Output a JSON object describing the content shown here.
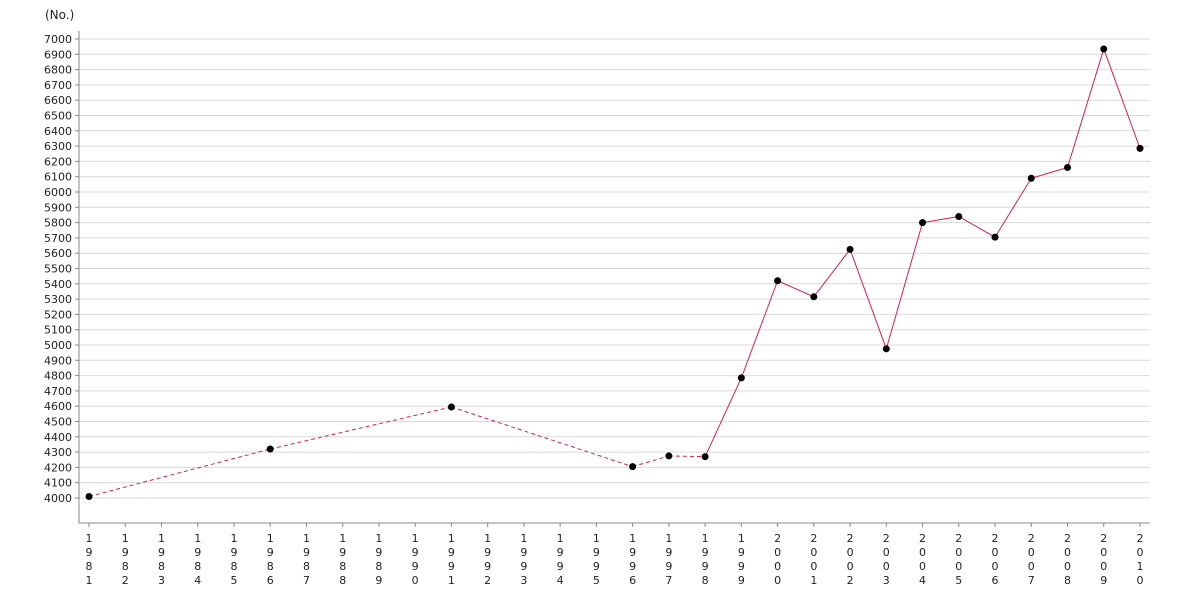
{
  "chart_data": {
    "type": "line",
    "y_unit_label": "(No.)",
    "x": [
      1981,
      1986,
      1991,
      1996,
      1997,
      1998,
      1999,
      2000,
      2001,
      2002,
      2003,
      2004,
      2005,
      2006,
      2007,
      2008,
      2009,
      2010
    ],
    "values": [
      4010,
      4320,
      4595,
      4205,
      4275,
      4270,
      4785,
      5420,
      5315,
      5625,
      4975,
      5800,
      5840,
      5705,
      6090,
      6160,
      6935,
      6285
    ],
    "dashed_until_index": 5,
    "x_tick_labels": [
      1981,
      1982,
      1983,
      1984,
      1985,
      1986,
      1987,
      1988,
      1989,
      1990,
      1991,
      1992,
      1993,
      1994,
      1995,
      1996,
      1997,
      1998,
      1999,
      2000,
      2001,
      2002,
      2003,
      2004,
      2005,
      2006,
      2007,
      2008,
      2009,
      2010
    ],
    "y_ticks": [
      4000,
      4100,
      4200,
      4300,
      4400,
      4500,
      4600,
      4700,
      4800,
      4900,
      5000,
      5100,
      5200,
      5300,
      5400,
      5500,
      5600,
      5700,
      5800,
      5900,
      6000,
      6100,
      6200,
      6300,
      6400,
      6500,
      6600,
      6700,
      6800,
      6900,
      7000
    ],
    "ylim": [
      4000,
      7000
    ],
    "xlim": [
      1981,
      2010
    ],
    "grid": true,
    "line_color": "#d6204a",
    "marker_color": "#000000"
  }
}
